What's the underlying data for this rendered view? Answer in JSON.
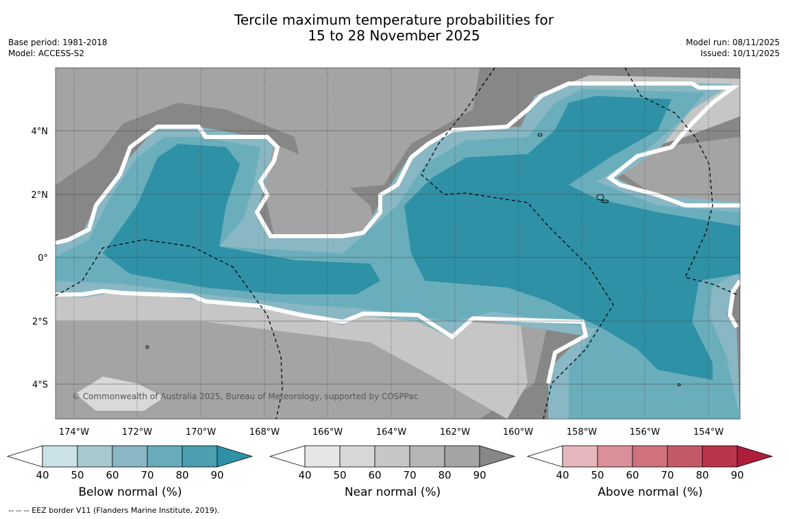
{
  "header": {
    "title_line1": "Tercile maximum temperature probabilities for",
    "title_line2": "15 to 28 November 2025",
    "base_period": "Base period: 1981-2018",
    "model": "Model: ACCESS-S2",
    "model_run": "Model run: 08/11/2025",
    "issued": "Issued: 10/11/2025"
  },
  "map": {
    "copyright": "© Commonwealth of Australia 2025, Bureau of Meteorology, supported by COSPPac",
    "lon_labels": [
      "174°W",
      "172°W",
      "170°W",
      "168°W",
      "166°W",
      "164°W",
      "162°W",
      "160°W",
      "158°W",
      "156°W",
      "154°W"
    ],
    "lat_labels": [
      "4°N",
      "2°N",
      "0°",
      "2°S",
      "4°S"
    ],
    "colors": {
      "below_dominant": "#2e91a6",
      "below_mid": "#6aaebc",
      "near_dark": "#878787",
      "near_mid": "#a4a4a4",
      "near_light": "#c6c6c6"
    }
  },
  "legend": {
    "ticks": [
      "40",
      "50",
      "60",
      "70",
      "80",
      "90"
    ],
    "below": {
      "label": "Below normal (%)",
      "colors": [
        "#c9e1e7",
        "#a6c8cf",
        "#89b7c4",
        "#69aabb",
        "#4b9fb0",
        "#2e91a6"
      ]
    },
    "near": {
      "label": "Near normal (%)",
      "colors": [
        "#e6e6e6",
        "#d7d7d7",
        "#c6c6c6",
        "#b5b5b5",
        "#a4a4a4",
        "#878787"
      ]
    },
    "above": {
      "label": "Above normal (%)",
      "colors": [
        "#e6b7bd",
        "#db9099",
        "#cf727e",
        "#c45a68",
        "#b9354c",
        "#ac1e3c"
      ]
    }
  },
  "footnote": "--  --  -- EEZ border V11 (Flanders Marine Institute, 2019)."
}
